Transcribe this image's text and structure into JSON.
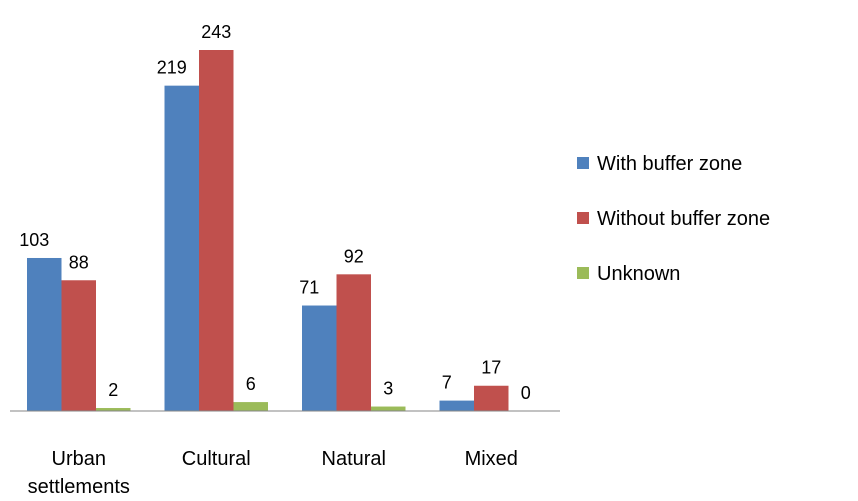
{
  "chart_data": {
    "type": "bar",
    "categories": [
      "Urban settlements",
      "Cultural",
      "Natural",
      "Mixed"
    ],
    "series": [
      {
        "name": "With buffer zone",
        "color": "#4f81bd",
        "values": [
          103,
          219,
          71,
          7
        ]
      },
      {
        "name": "Without buffer zone",
        "color": "#c0504d",
        "values": [
          88,
          243,
          92,
          17
        ]
      },
      {
        "name": "Unknown",
        "color": "#9bbb59",
        "values": [
          2,
          6,
          3,
          0
        ]
      }
    ],
    "legend": "right"
  }
}
